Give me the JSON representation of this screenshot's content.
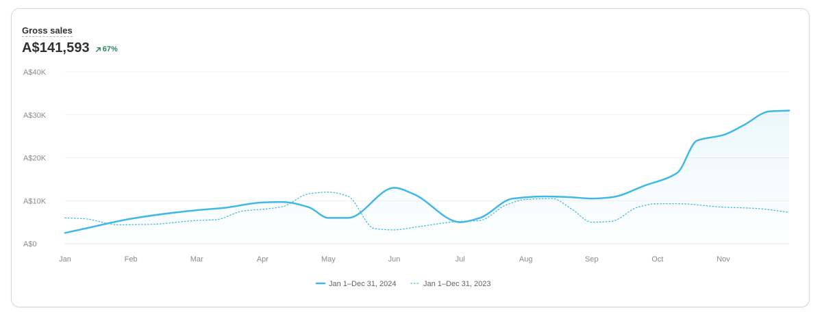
{
  "card": {
    "title": "Gross sales",
    "value": "A$141,593",
    "change": "67%",
    "change_direction": "up",
    "change_color": "#29845a"
  },
  "chart_data": {
    "type": "line",
    "title": "Gross sales",
    "xlabel": "",
    "ylabel": "",
    "categories": [
      "Jan",
      "Feb",
      "Mar",
      "Apr",
      "May",
      "Jun",
      "Jul",
      "Aug",
      "Sep",
      "Oct",
      "Nov"
    ],
    "y_ticks": [
      "A$0",
      "A$10K",
      "A$20K",
      "A$30K",
      "A$40K"
    ],
    "ylim": [
      0,
      40000
    ],
    "grid": true,
    "legend_position": "bottom-center",
    "series": [
      {
        "name": "Jan 1–Dec 31, 2024",
        "style": "solid",
        "color": "#3fb8e8",
        "x": [
          0,
          0.3,
          1,
          2,
          2.4,
          3,
          3.3,
          3.7,
          4,
          4.3,
          5,
          5.3,
          6,
          6.3,
          6.8,
          7.3,
          7.7,
          8,
          8.3,
          8.8,
          9.3,
          9.6,
          10,
          10.3,
          10.7,
          11
        ],
        "values": [
          2500,
          3500,
          5800,
          7800,
          8300,
          9600,
          9700,
          8500,
          6000,
          6000,
          13000,
          11500,
          5000,
          6000,
          10500,
          11000,
          10800,
          10500,
          10800,
          13500,
          16500,
          24000,
          25300,
          27500,
          30800,
          31000
        ]
      },
      {
        "name": "Jan 1–Dec 31, 2023",
        "style": "dotted",
        "color": "#3fb8e8",
        "x": [
          0,
          0.3,
          0.8,
          1.3,
          2,
          2.3,
          2.7,
          3,
          3.3,
          3.7,
          4,
          4.3,
          4.7,
          5,
          5.3,
          6,
          6.3,
          6.7,
          7,
          7.4,
          7.7,
          8,
          8.3,
          8.7,
          9,
          9.3,
          10,
          10.5,
          11
        ],
        "values": [
          6000,
          5800,
          4400,
          4500,
          5400,
          5600,
          7600,
          8000,
          8600,
          11600,
          12000,
          11000,
          3500,
          3200,
          3800,
          5200,
          5400,
          9000,
          10300,
          10500,
          8000,
          5000,
          5200,
          8500,
          9300,
          9300,
          8500,
          8200,
          7300
        ]
      }
    ]
  }
}
